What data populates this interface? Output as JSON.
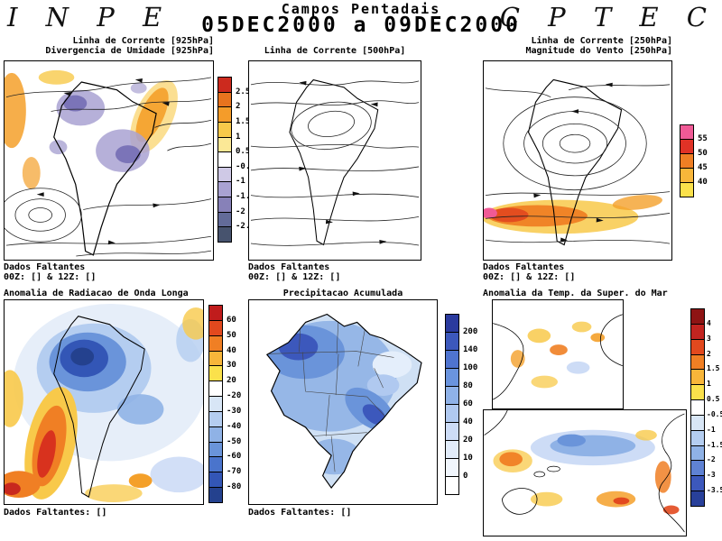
{
  "header": {
    "inpe": "I N P E",
    "cptec": "C P T E C",
    "title": "Campos Pentadais",
    "date_range": "05DEC2000 a 09DEC2000"
  },
  "panels": {
    "p1": {
      "title1": "Linha de Corrente [925hPa]",
      "title2": "Divergencia de Umidade [925hPa]",
      "footer1": "Dados Faltantes",
      "footer2": "00Z: [] & 12Z: []",
      "colorbar": {
        "labels": [
          "2.5",
          "2",
          "1.5",
          "1",
          "0.5",
          "-0.5",
          "-1",
          "-1.5",
          "-2",
          "-2.5"
        ],
        "colors": [
          "#cc2a1e",
          "#e8731e",
          "#f49c2a",
          "#f8c94a",
          "#fbe896",
          "#ffffff",
          "#cfc9e6",
          "#a9a2d2",
          "#8781b8",
          "#636b99",
          "#47536e"
        ]
      }
    },
    "p2": {
      "title1": "Linha de Corrente [500hPa]",
      "footer1": "Dados Faltantes",
      "footer2": "00Z: [] & 12Z: []"
    },
    "p3": {
      "title1": "Linha de Corrente [250hPa]",
      "title2": "Magnitude do Vento [250hPa]",
      "footer1": "Dados Faltantes",
      "footer2": "00Z: [] & 12Z: []",
      "colorbar": {
        "labels": [
          "55",
          "50",
          "45",
          "40"
        ],
        "colors": [
          "#f05a96",
          "#e03226",
          "#ef7f24",
          "#f8b63a",
          "#fbe14b"
        ]
      }
    },
    "p4": {
      "title1": "Anomalia de Radiacao de Onda Longa",
      "footer1": "Dados Faltantes: []",
      "colorbar": {
        "labels": [
          "60",
          "50",
          "40",
          "30",
          "20",
          "-20",
          "-30",
          "-40",
          "-50",
          "-60",
          "-70",
          "-80"
        ],
        "colors": [
          "#c01c1c",
          "#e2491e",
          "#f07f24",
          "#f8b63a",
          "#fbe14b",
          "#ffffff",
          "#d8e6f6",
          "#b4cdf0",
          "#8fb2e6",
          "#6a94da",
          "#4a74cc",
          "#3356b6",
          "#24418e"
        ]
      }
    },
    "p5": {
      "title1": "Precipitacao Acumulada",
      "footer1": "Dados Faltantes: []",
      "colorbar": {
        "labels": [
          "200",
          "140",
          "100",
          "80",
          "60",
          "40",
          "20",
          "10",
          "0"
        ],
        "colors": [
          "#2a3a9e",
          "#3c58bc",
          "#4f74d0",
          "#6a94de",
          "#8fb2e8",
          "#b0c9f0",
          "#cddcf6",
          "#e2ecfa",
          "#f1f6fd",
          "#ffffff"
        ]
      }
    },
    "p6": {
      "title1": "Anomalia da Temp. da Super. do Mar",
      "colorbar": {
        "labels": [
          "4",
          "3",
          "2",
          "1.5",
          "1",
          "0.5",
          "-0.5",
          "-1",
          "-1.5",
          "-2",
          "-3",
          "-3.5"
        ],
        "colors": [
          "#8e1414",
          "#c22420",
          "#e2491e",
          "#f07f24",
          "#f8b63a",
          "#fbe14b",
          "#ffffff",
          "#d8e6f6",
          "#b4cdf0",
          "#8fb2e6",
          "#5f82d4",
          "#3c58bc",
          "#28409a"
        ]
      }
    }
  }
}
